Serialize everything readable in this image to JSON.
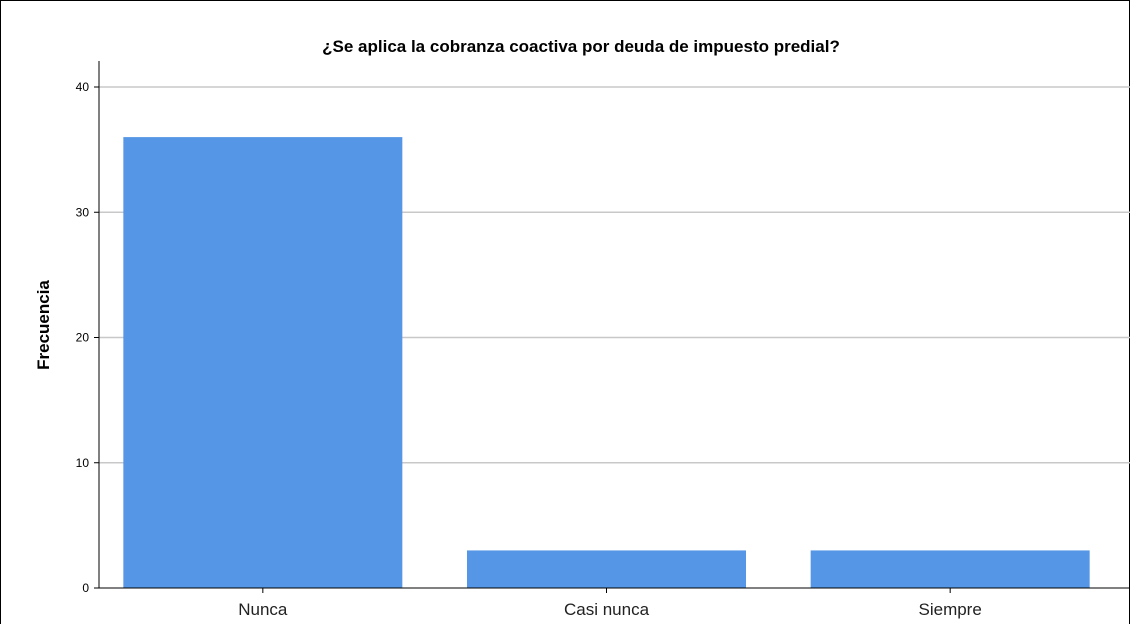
{
  "chart_data": {
    "type": "bar",
    "title": "¿Se aplica la cobranza coactiva por deuda de impuesto predial?",
    "xlabel": "",
    "ylabel": "Frecuencia",
    "categories": [
      "Nunca",
      "Casi nunca",
      "Siempre"
    ],
    "values": [
      36,
      3,
      3
    ],
    "ylim": [
      0,
      42
    ],
    "yticks": [
      0,
      10,
      20,
      30,
      40
    ],
    "grid": true,
    "bar_color": "#5597e6",
    "grid_color": "#c8c8c8"
  }
}
